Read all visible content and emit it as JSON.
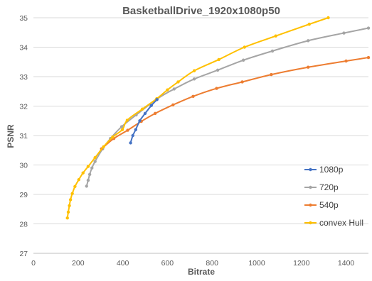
{
  "chart_data": {
    "type": "line",
    "title": "BasketballDrive_1920x1080p50",
    "xlabel": "Bitrate",
    "ylabel": "PSNR",
    "xlim": [
      0,
      1500
    ],
    "ylim": [
      27,
      35
    ],
    "xticks": [
      0,
      200,
      400,
      600,
      800,
      1000,
      1200,
      1400
    ],
    "yticks": [
      27,
      28,
      29,
      30,
      31,
      32,
      33,
      34,
      35
    ],
    "grid": "horizontal",
    "legend_position": "right",
    "series": [
      {
        "name": "1080p",
        "color": "#4472c4",
        "points": [
          [
            435,
            30.75
          ],
          [
            445,
            31.0
          ],
          [
            458,
            31.2
          ],
          [
            476,
            31.5
          ],
          [
            500,
            31.75
          ],
          [
            528,
            32.02
          ],
          [
            553,
            32.22
          ]
        ]
      },
      {
        "name": "720p",
        "color": "#a5a5a5",
        "points": [
          [
            238,
            29.28
          ],
          [
            245,
            29.48
          ],
          [
            252,
            29.68
          ],
          [
            262,
            29.9
          ],
          [
            276,
            30.12
          ],
          [
            310,
            30.55
          ],
          [
            345,
            30.9
          ],
          [
            395,
            31.3
          ],
          [
            460,
            31.7
          ],
          [
            555,
            32.25
          ],
          [
            630,
            32.58
          ],
          [
            720,
            32.92
          ],
          [
            825,
            33.22
          ],
          [
            940,
            33.56
          ],
          [
            1070,
            33.87
          ],
          [
            1230,
            34.22
          ],
          [
            1390,
            34.48
          ],
          [
            1500,
            34.65
          ]
        ]
      },
      {
        "name": "540p",
        "color": "#ed7d31",
        "points": [
          [
            305,
            30.55
          ],
          [
            360,
            30.9
          ],
          [
            422,
            31.18
          ],
          [
            483,
            31.48
          ],
          [
            545,
            31.75
          ],
          [
            625,
            32.04
          ],
          [
            715,
            32.33
          ],
          [
            820,
            32.6
          ],
          [
            935,
            32.82
          ],
          [
            1065,
            33.07
          ],
          [
            1230,
            33.32
          ],
          [
            1400,
            33.53
          ],
          [
            1500,
            33.65
          ]
        ]
      },
      {
        "name": "convex Hull",
        "color": "#ffc000",
        "points": [
          [
            152,
            28.2
          ],
          [
            156,
            28.4
          ],
          [
            161,
            28.62
          ],
          [
            166,
            28.82
          ],
          [
            174,
            29.03
          ],
          [
            186,
            29.27
          ],
          [
            203,
            29.5
          ],
          [
            222,
            29.73
          ],
          [
            245,
            29.95
          ],
          [
            276,
            30.25
          ],
          [
            314,
            30.62
          ],
          [
            355,
            30.95
          ],
          [
            398,
            31.2
          ],
          [
            420,
            31.52
          ],
          [
            488,
            31.9
          ],
          [
            552,
            32.25
          ],
          [
            600,
            32.55
          ],
          [
            648,
            32.82
          ],
          [
            720,
            33.2
          ],
          [
            830,
            33.58
          ],
          [
            945,
            34.0
          ],
          [
            1085,
            34.38
          ],
          [
            1235,
            34.78
          ],
          [
            1320,
            35.0
          ]
        ]
      }
    ]
  }
}
